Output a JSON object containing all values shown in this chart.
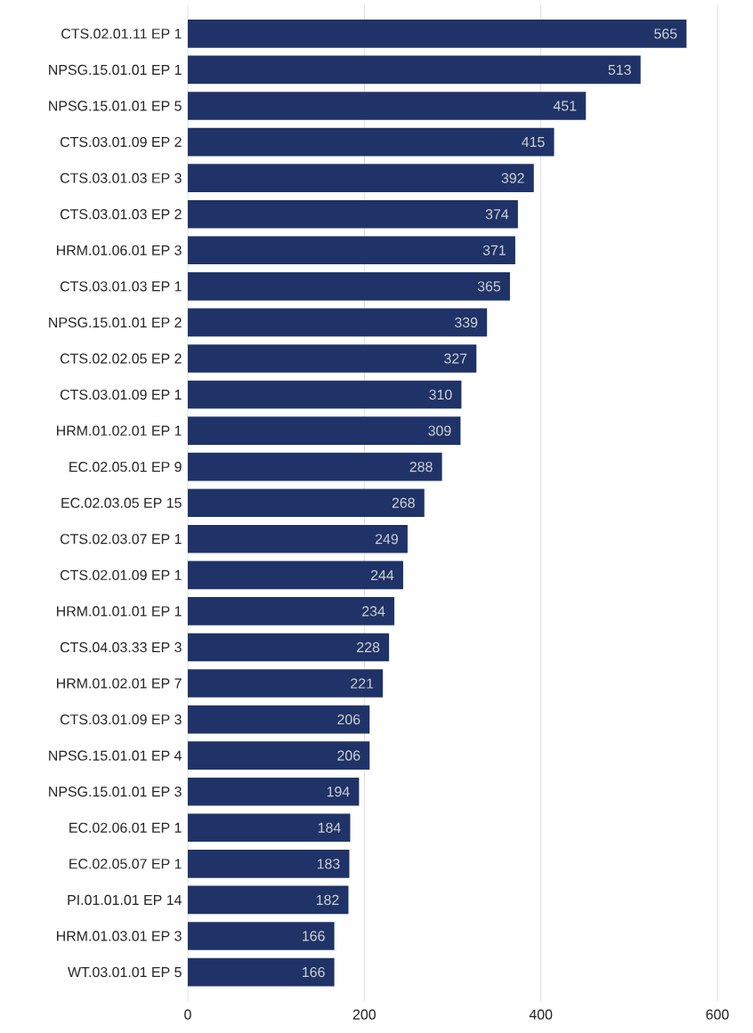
{
  "chart_data": {
    "type": "bar",
    "orientation": "horizontal",
    "categories": [
      "CTS.02.01.11 EP 1",
      "NPSG.15.01.01 EP 1",
      "NPSG.15.01.01 EP 5",
      "CTS.03.01.09 EP 2",
      "CTS.03.01.03 EP 3",
      "CTS.03.01.03 EP 2",
      "HRM.01.06.01 EP 3",
      "CTS.03.01.03 EP 1",
      "NPSG.15.01.01 EP 2",
      "CTS.02.02.05 EP 2",
      "CTS.03.01.09 EP 1",
      "HRM.01.02.01 EP 1",
      "EC.02.05.01 EP 9",
      "EC.02.03.05 EP 15",
      "CTS.02.03.07 EP 1",
      "CTS.02.01.09 EP 1",
      "HRM.01.01.01 EP 1",
      "CTS.04.03.33 EP 3",
      "HRM.01.02.01 EP 7",
      "CTS.03.01.09 EP 3",
      "NPSG.15.01.01 EP 4",
      "NPSG.15.01.01 EP 3",
      "EC.02.06.01 EP 1",
      "EC.02.05.07 EP 1",
      "PI.01.01.01 EP 14",
      "HRM.01.03.01 EP 3",
      "WT.03.01.01 EP 5"
    ],
    "values": [
      565,
      513,
      451,
      415,
      392,
      374,
      371,
      365,
      339,
      327,
      310,
      309,
      288,
      268,
      249,
      244,
      234,
      228,
      221,
      206,
      206,
      194,
      184,
      183,
      182,
      166,
      166
    ],
    "color": "#1f3368",
    "xlim": [
      0,
      600
    ],
    "xticks": [
      0,
      200,
      400,
      600
    ],
    "grid": "x",
    "data_labels": true
  }
}
